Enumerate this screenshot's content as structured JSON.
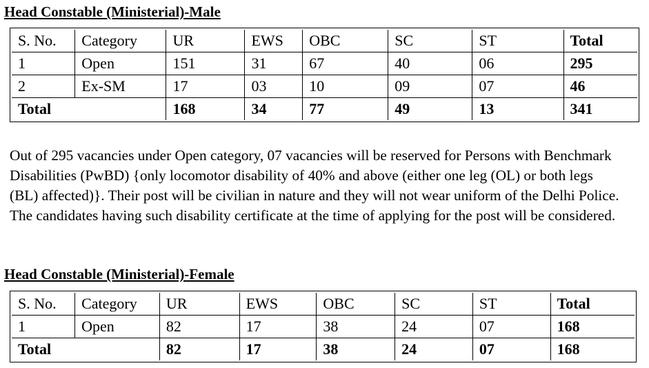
{
  "male": {
    "heading": "Head Constable (Ministerial)-Male",
    "headers": [
      "S. No.",
      "Category",
      "UR",
      "EWS",
      "OBC",
      "SC",
      "ST",
      "Total"
    ],
    "rows": [
      [
        "1",
        "Open",
        "151",
        "31",
        "67",
        "40",
        "06",
        "295"
      ],
      [
        "2",
        "Ex-SM",
        "17",
        "03",
        "10",
        "09",
        "07",
        "46"
      ]
    ],
    "total_row": {
      "label": "Total",
      "values": [
        "168",
        "34",
        "77",
        "49",
        "13",
        "341"
      ]
    }
  },
  "note": "Out of 295 vacancies under Open category, 07 vacancies will be reserved for Persons with Benchmark Disabilities (PwBD) {only locomotor disability of 40% and above (either one leg (OL) or both legs (BL) affected)}. Their post will be civilian in nature and they will not wear uniform of the Delhi Police. The candidates having such disability certificate at the time of applying for the post will be considered.",
  "female": {
    "heading": "Head Constable (Ministerial)-Female",
    "headers": [
      "S. No.",
      "Category",
      "UR",
      "EWS",
      "OBC",
      "SC",
      "ST",
      "Total"
    ],
    "rows": [
      [
        "1",
        "Open",
        "82",
        "17",
        "38",
        "24",
        "07",
        "168"
      ]
    ],
    "total_row": {
      "label": "Total",
      "values": [
        "82",
        "17",
        "38",
        "24",
        "07",
        "168"
      ]
    }
  }
}
